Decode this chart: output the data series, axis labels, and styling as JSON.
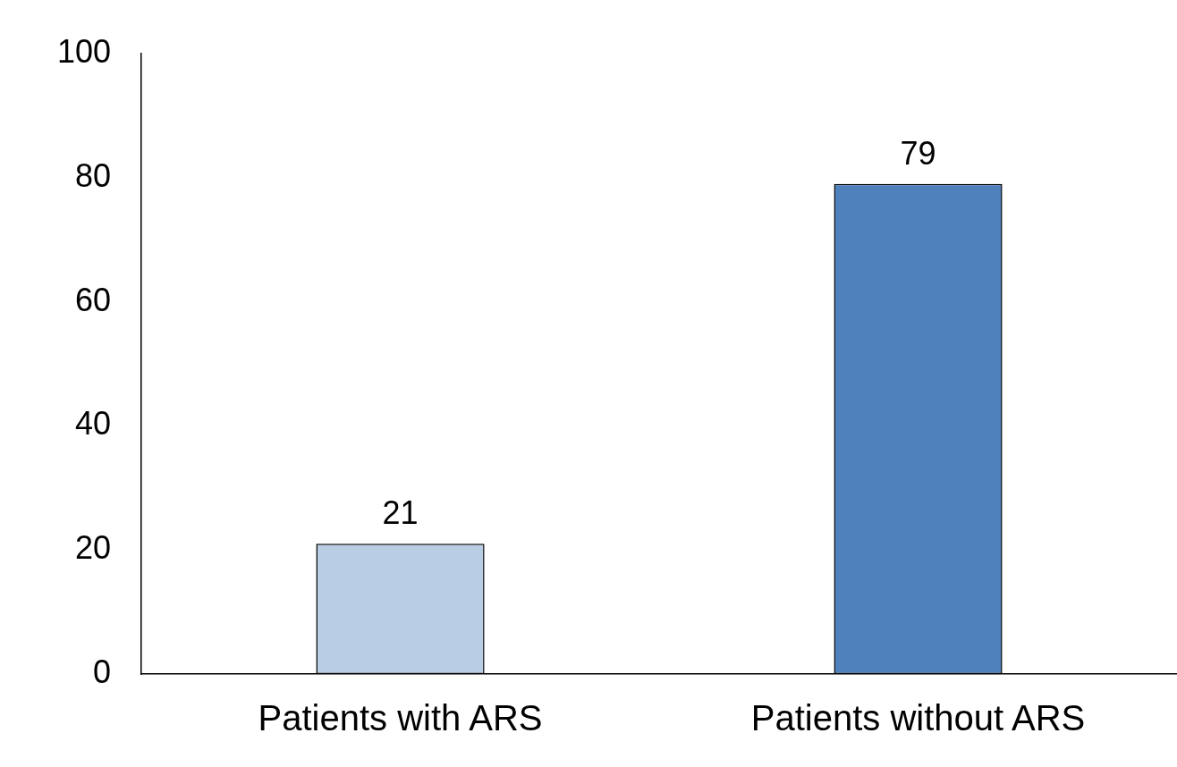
{
  "chart_data": {
    "type": "bar",
    "categories": [
      "Patients with ARS",
      "Patients without ARS"
    ],
    "values": [
      21,
      79
    ],
    "colors": [
      "#b9cde5",
      "#4f81bd"
    ],
    "ylim": [
      0,
      100
    ],
    "yticks": [
      0,
      20,
      40,
      60,
      80,
      100
    ],
    "grid": false,
    "data_labels": true
  }
}
